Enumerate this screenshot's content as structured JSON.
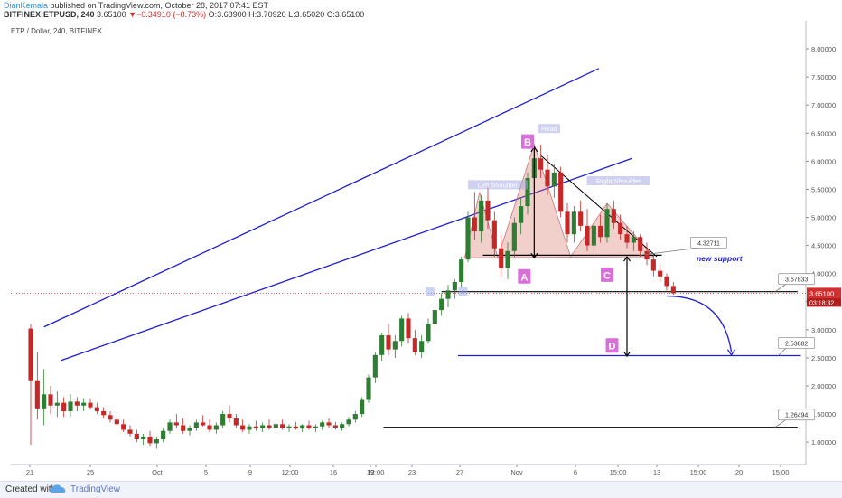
{
  "header": {
    "author": "DianKemala",
    "published": " published on TradingView.com, October 28, 2017 07:41 EST"
  },
  "symbol_row": {
    "symbol": "BITFINEX:ETPUSD, 240",
    "last": "3.65100",
    "change_arrow": "▼",
    "change": "−0.34910 (−8.73%)",
    "ohlc": "O:3.68900 H:3.70920 L:3.65020 C:3.65100"
  },
  "footer": {
    "created_with": "Created with",
    "brand": "TradingView"
  },
  "chart_data": {
    "type": "candlestick",
    "legend_title": "ETP / Dollar, 240, BITFINEX",
    "y_axis": {
      "side": "right",
      "range": [
        0.6,
        8.5
      ],
      "ticks": [
        "1.00000",
        "1.50000",
        "2.00000",
        "2.50000",
        "3.00000",
        "3.50000",
        "4.00000",
        "4.50000",
        "5.00000",
        "5.50000",
        "6.00000",
        "6.50000",
        "7.00000",
        "7.50000",
        "8.00000"
      ]
    },
    "x_axis": {
      "labels": [
        "21",
        "25",
        "Oct",
        "5",
        "9",
        "12:00",
        "16",
        "19",
        "12:00",
        "23",
        "27",
        "Nov",
        "6",
        "15:00",
        "13",
        "15:00",
        "20",
        "15:00"
      ],
      "range_days": [
        -2,
        46
      ]
    },
    "last_price": {
      "label": "3.65100",
      "countdown": "03:18:32",
      "color": "#d32f2f"
    },
    "price_callouts": [
      {
        "label": "4.32711",
        "value": 4.32711
      },
      {
        "label": "3.67833",
        "value": 3.67833
      },
      {
        "label": "2.53882",
        "value": 2.53882
      },
      {
        "label": "1.26494",
        "value": 1.26494
      }
    ],
    "levels": [
      {
        "value": 4.3271,
        "from_day": 26.5,
        "to_day": 37.3,
        "color": "#000000"
      },
      {
        "value": 3.6783,
        "from_day": 24,
        "to_day": 45.5,
        "color": "#000000"
      },
      {
        "value": 2.5388,
        "from_day": 25,
        "to_day": 45.7,
        "color": "#1e1ed2"
      },
      {
        "value": 1.2649,
        "from_day": 20.5,
        "to_day": 45.5,
        "color": "#000000"
      }
    ],
    "channel_upper": {
      "from": [
        0,
        3.05
      ],
      "to": [
        33.5,
        7.65
      ]
    },
    "channel_lower": {
      "from": [
        1,
        2.45
      ],
      "to": [
        35.5,
        6.05
      ]
    },
    "pattern_lines": [
      {
        "from": [
          30,
          6.1
        ],
        "to": [
          37,
          4.3
        ],
        "color": "#000000"
      }
    ],
    "support_label": "new support",
    "pattern_labels": [
      {
        "text": "Left Shoulder",
        "day": 27.4,
        "value": 5.55
      },
      {
        "text": "Head",
        "day": 30.5,
        "value": 6.55
      },
      {
        "text": "Right Shoulder",
        "day": 34.7,
        "value": 5.62
      }
    ],
    "point_labels": [
      {
        "text": "B",
        "day": 29.2,
        "value": 6.35
      },
      {
        "text": "A",
        "day": 29.0,
        "value": 3.95
      },
      {
        "text": "C",
        "day": 34.0,
        "value": 3.98
      },
      {
        "text": "D",
        "day": 34.3,
        "value": 2.72
      }
    ],
    "candles": [
      {
        "t": -0.8,
        "o": 3.02,
        "h": 3.1,
        "l": 0.95,
        "c": 2.1
      },
      {
        "t": -0.4,
        "o": 2.1,
        "h": 2.6,
        "l": 1.4,
        "c": 1.6
      },
      {
        "t": 0.0,
        "o": 1.6,
        "h": 2.3,
        "l": 1.3,
        "c": 1.85
      },
      {
        "t": 0.4,
        "o": 1.85,
        "h": 2.0,
        "l": 1.5,
        "c": 1.65
      },
      {
        "t": 0.8,
        "o": 1.65,
        "h": 1.9,
        "l": 1.45,
        "c": 1.7
      },
      {
        "t": 1.2,
        "o": 1.7,
        "h": 1.8,
        "l": 1.45,
        "c": 1.55
      },
      {
        "t": 1.6,
        "o": 1.55,
        "h": 1.85,
        "l": 1.45,
        "c": 1.72
      },
      {
        "t": 2.0,
        "o": 1.72,
        "h": 1.8,
        "l": 1.55,
        "c": 1.65
      },
      {
        "t": 2.4,
        "o": 1.65,
        "h": 1.78,
        "l": 1.55,
        "c": 1.7
      },
      {
        "t": 2.8,
        "o": 1.7,
        "h": 1.78,
        "l": 1.58,
        "c": 1.62
      },
      {
        "t": 3.2,
        "o": 1.62,
        "h": 1.7,
        "l": 1.5,
        "c": 1.55
      },
      {
        "t": 3.6,
        "o": 1.55,
        "h": 1.62,
        "l": 1.42,
        "c": 1.48
      },
      {
        "t": 4.0,
        "o": 1.48,
        "h": 1.55,
        "l": 1.35,
        "c": 1.4
      },
      {
        "t": 4.4,
        "o": 1.4,
        "h": 1.48,
        "l": 1.28,
        "c": 1.32
      },
      {
        "t": 4.8,
        "o": 1.32,
        "h": 1.4,
        "l": 1.18,
        "c": 1.22
      },
      {
        "t": 5.2,
        "o": 1.22,
        "h": 1.3,
        "l": 1.1,
        "c": 1.15
      },
      {
        "t": 5.6,
        "o": 1.15,
        "h": 1.22,
        "l": 1.0,
        "c": 1.05
      },
      {
        "t": 6.0,
        "o": 1.05,
        "h": 1.15,
        "l": 0.95,
        "c": 1.1
      },
      {
        "t": 6.4,
        "o": 1.1,
        "h": 1.2,
        "l": 0.92,
        "c": 0.98
      },
      {
        "t": 6.8,
        "o": 0.98,
        "h": 1.1,
        "l": 0.88,
        "c": 1.05
      },
      {
        "t": 7.2,
        "o": 1.05,
        "h": 1.25,
        "l": 1.0,
        "c": 1.2
      },
      {
        "t": 7.6,
        "o": 1.2,
        "h": 1.4,
        "l": 1.15,
        "c": 1.35
      },
      {
        "t": 8.0,
        "o": 1.35,
        "h": 1.5,
        "l": 1.25,
        "c": 1.3
      },
      {
        "t": 8.4,
        "o": 1.3,
        "h": 1.42,
        "l": 1.15,
        "c": 1.2
      },
      {
        "t": 8.8,
        "o": 1.2,
        "h": 1.3,
        "l": 1.12,
        "c": 1.25
      },
      {
        "t": 9.2,
        "o": 1.25,
        "h": 1.4,
        "l": 1.2,
        "c": 1.35
      },
      {
        "t": 9.6,
        "o": 1.35,
        "h": 1.48,
        "l": 1.28,
        "c": 1.3
      },
      {
        "t": 10.0,
        "o": 1.3,
        "h": 1.4,
        "l": 1.18,
        "c": 1.22
      },
      {
        "t": 10.4,
        "o": 1.22,
        "h": 1.35,
        "l": 1.15,
        "c": 1.3
      },
      {
        "t": 10.8,
        "o": 1.3,
        "h": 1.55,
        "l": 1.25,
        "c": 1.5
      },
      {
        "t": 11.2,
        "o": 1.5,
        "h": 1.65,
        "l": 1.35,
        "c": 1.42
      },
      {
        "t": 11.6,
        "o": 1.42,
        "h": 1.5,
        "l": 1.25,
        "c": 1.3
      },
      {
        "t": 12.0,
        "o": 1.3,
        "h": 1.4,
        "l": 1.18,
        "c": 1.22
      },
      {
        "t": 12.4,
        "o": 1.22,
        "h": 1.32,
        "l": 1.15,
        "c": 1.28
      },
      {
        "t": 12.8,
        "o": 1.28,
        "h": 1.38,
        "l": 1.2,
        "c": 1.25
      },
      {
        "t": 13.2,
        "o": 1.25,
        "h": 1.35,
        "l": 1.18,
        "c": 1.3
      },
      {
        "t": 13.6,
        "o": 1.3,
        "h": 1.4,
        "l": 1.22,
        "c": 1.26
      },
      {
        "t": 14.0,
        "o": 1.26,
        "h": 1.38,
        "l": 1.2,
        "c": 1.32
      },
      {
        "t": 14.4,
        "o": 1.32,
        "h": 1.4,
        "l": 1.22,
        "c": 1.25
      },
      {
        "t": 14.8,
        "o": 1.25,
        "h": 1.32,
        "l": 1.18,
        "c": 1.28
      },
      {
        "t": 15.2,
        "o": 1.28,
        "h": 1.36,
        "l": 1.22,
        "c": 1.24
      },
      {
        "t": 15.6,
        "o": 1.24,
        "h": 1.32,
        "l": 1.18,
        "c": 1.3
      },
      {
        "t": 16.0,
        "o": 1.3,
        "h": 1.38,
        "l": 1.22,
        "c": 1.25
      },
      {
        "t": 16.4,
        "o": 1.25,
        "h": 1.32,
        "l": 1.18,
        "c": 1.28
      },
      {
        "t": 16.8,
        "o": 1.28,
        "h": 1.38,
        "l": 1.22,
        "c": 1.35
      },
      {
        "t": 17.2,
        "o": 1.35,
        "h": 1.42,
        "l": 1.25,
        "c": 1.3
      },
      {
        "t": 17.6,
        "o": 1.3,
        "h": 1.36,
        "l": 1.22,
        "c": 1.26
      },
      {
        "t": 18.0,
        "o": 1.26,
        "h": 1.35,
        "l": 1.2,
        "c": 1.32
      },
      {
        "t": 18.4,
        "o": 1.32,
        "h": 1.45,
        "l": 1.28,
        "c": 1.4
      },
      {
        "t": 18.8,
        "o": 1.4,
        "h": 1.55,
        "l": 1.35,
        "c": 1.5
      },
      {
        "t": 19.2,
        "o": 1.5,
        "h": 1.8,
        "l": 1.45,
        "c": 1.75
      },
      {
        "t": 19.6,
        "o": 1.75,
        "h": 2.2,
        "l": 1.7,
        "c": 2.15
      },
      {
        "t": 20.0,
        "o": 2.15,
        "h": 2.6,
        "l": 2.05,
        "c": 2.55
      },
      {
        "t": 20.4,
        "o": 2.55,
        "h": 2.95,
        "l": 2.45,
        "c": 2.9
      },
      {
        "t": 20.8,
        "o": 2.9,
        "h": 3.1,
        "l": 2.55,
        "c": 2.65
      },
      {
        "t": 21.2,
        "o": 2.65,
        "h": 2.9,
        "l": 2.5,
        "c": 2.8
      },
      {
        "t": 21.6,
        "o": 2.8,
        "h": 3.25,
        "l": 2.7,
        "c": 3.2
      },
      {
        "t": 22.0,
        "o": 3.2,
        "h": 3.3,
        "l": 2.75,
        "c": 2.85
      },
      {
        "t": 22.4,
        "o": 2.85,
        "h": 3.0,
        "l": 2.55,
        "c": 2.6
      },
      {
        "t": 22.8,
        "o": 2.6,
        "h": 2.9,
        "l": 2.5,
        "c": 2.8
      },
      {
        "t": 23.2,
        "o": 2.8,
        "h": 3.2,
        "l": 2.75,
        "c": 3.1
      },
      {
        "t": 23.6,
        "o": 3.1,
        "h": 3.4,
        "l": 3.0,
        "c": 3.35
      },
      {
        "t": 24.0,
        "o": 3.35,
        "h": 3.65,
        "l": 3.25,
        "c": 3.55
      },
      {
        "t": 24.4,
        "o": 3.55,
        "h": 3.8,
        "l": 3.4,
        "c": 3.7
      },
      {
        "t": 24.8,
        "o": 3.7,
        "h": 3.9,
        "l": 3.55,
        "c": 3.85
      },
      {
        "t": 25.2,
        "o": 3.85,
        "h": 4.3,
        "l": 3.75,
        "c": 4.25
      },
      {
        "t": 25.6,
        "o": 4.25,
        "h": 5.1,
        "l": 4.2,
        "c": 5.0
      },
      {
        "t": 26.0,
        "o": 5.0,
        "h": 5.45,
        "l": 4.6,
        "c": 4.75
      },
      {
        "t": 26.4,
        "o": 4.75,
        "h": 5.4,
        "l": 4.55,
        "c": 5.3
      },
      {
        "t": 26.8,
        "o": 5.3,
        "h": 5.55,
        "l": 4.8,
        "c": 4.95
      },
      {
        "t": 27.2,
        "o": 4.95,
        "h": 5.1,
        "l": 4.3,
        "c": 4.45
      },
      {
        "t": 27.6,
        "o": 4.45,
        "h": 4.7,
        "l": 3.95,
        "c": 4.1
      },
      {
        "t": 28.0,
        "o": 4.1,
        "h": 4.55,
        "l": 3.9,
        "c": 4.4
      },
      {
        "t": 28.4,
        "o": 4.4,
        "h": 5.0,
        "l": 4.3,
        "c": 4.9
      },
      {
        "t": 28.8,
        "o": 4.9,
        "h": 5.35,
        "l": 4.7,
        "c": 5.2
      },
      {
        "t": 29.2,
        "o": 5.2,
        "h": 5.8,
        "l": 5.05,
        "c": 5.7
      },
      {
        "t": 29.6,
        "o": 5.7,
        "h": 6.2,
        "l": 5.5,
        "c": 6.05
      },
      {
        "t": 30.0,
        "o": 6.05,
        "h": 6.3,
        "l": 5.7,
        "c": 5.85
      },
      {
        "t": 30.4,
        "o": 5.85,
        "h": 6.1,
        "l": 5.4,
        "c": 5.55
      },
      {
        "t": 30.8,
        "o": 5.55,
        "h": 5.95,
        "l": 5.35,
        "c": 5.8
      },
      {
        "t": 31.2,
        "o": 5.8,
        "h": 5.9,
        "l": 5.0,
        "c": 5.1
      },
      {
        "t": 31.6,
        "o": 5.1,
        "h": 5.25,
        "l": 4.55,
        "c": 4.7
      },
      {
        "t": 32.0,
        "o": 4.7,
        "h": 5.2,
        "l": 4.55,
        "c": 5.1
      },
      {
        "t": 32.4,
        "o": 5.1,
        "h": 5.3,
        "l": 4.75,
        "c": 4.85
      },
      {
        "t": 32.8,
        "o": 4.85,
        "h": 5.15,
        "l": 4.4,
        "c": 4.5
      },
      {
        "t": 33.2,
        "o": 4.5,
        "h": 4.95,
        "l": 4.35,
        "c": 4.85
      },
      {
        "t": 33.6,
        "o": 4.85,
        "h": 5.05,
        "l": 4.55,
        "c": 4.65
      },
      {
        "t": 34.0,
        "o": 4.65,
        "h": 5.25,
        "l": 4.55,
        "c": 5.15
      },
      {
        "t": 34.4,
        "o": 5.15,
        "h": 5.3,
        "l": 4.8,
        "c": 4.9
      },
      {
        "t": 34.8,
        "o": 4.9,
        "h": 5.05,
        "l": 4.6,
        "c": 4.7
      },
      {
        "t": 35.2,
        "o": 4.7,
        "h": 4.85,
        "l": 4.45,
        "c": 4.55
      },
      {
        "t": 35.6,
        "o": 4.55,
        "h": 4.75,
        "l": 4.4,
        "c": 4.65
      },
      {
        "t": 36.0,
        "o": 4.65,
        "h": 4.7,
        "l": 4.3,
        "c": 4.4
      },
      {
        "t": 36.4,
        "o": 4.4,
        "h": 4.55,
        "l": 4.15,
        "c": 4.25
      },
      {
        "t": 36.8,
        "o": 4.25,
        "h": 4.35,
        "l": 3.95,
        "c": 4.05
      },
      {
        "t": 37.2,
        "o": 4.05,
        "h": 4.15,
        "l": 3.85,
        "c": 3.95
      },
      {
        "t": 37.6,
        "o": 3.95,
        "h": 4.0,
        "l": 3.7,
        "c": 3.78
      },
      {
        "t": 38.0,
        "o": 3.78,
        "h": 3.85,
        "l": 3.62,
        "c": 3.65
      }
    ]
  }
}
